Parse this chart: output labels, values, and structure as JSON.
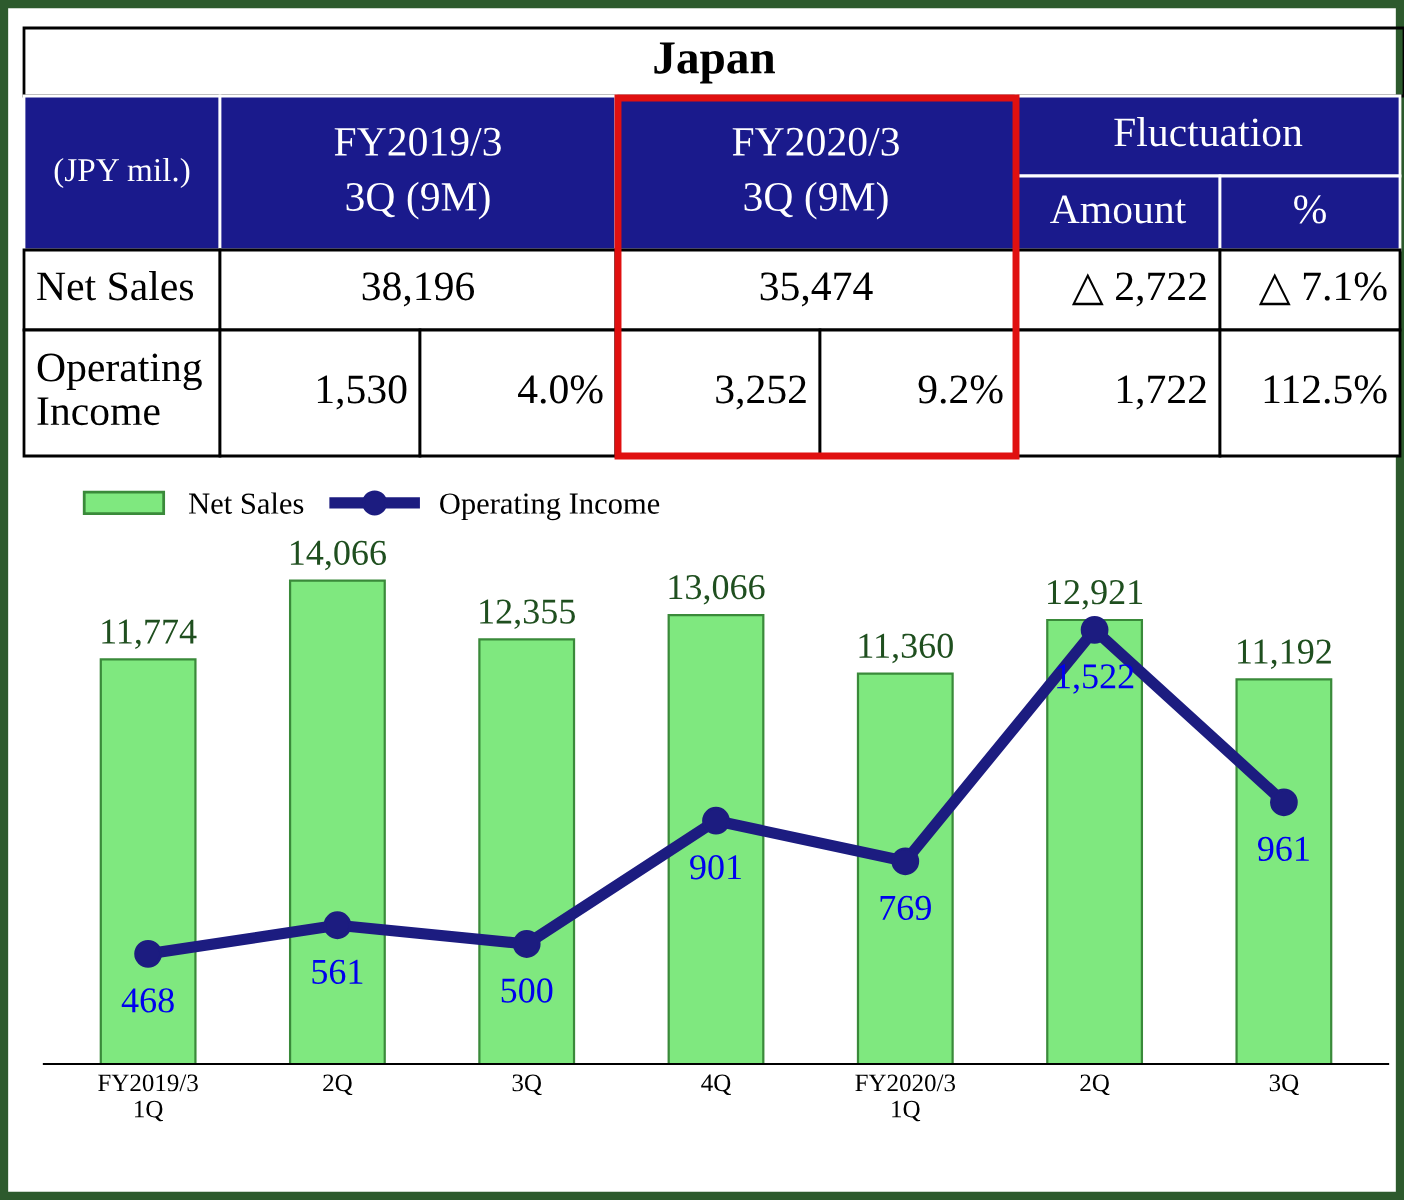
{
  "chart_data": [
    {
      "type": "other",
      "title": "Japan",
      "annotations": [
        "(JPY mil.)",
        "FY2019/3\n3Q (9M)",
        "FY2020/3\n3Q (9M)",
        "Fluctuation",
        "Amount",
        "%",
        "Net Sales",
        "38,196",
        "35,474",
        "△ 2,722",
        "△ 7.1%",
        "Operating\nIncome",
        "1,530",
        "4.0%",
        "3,252",
        "9.2%",
        "1,722",
        "112.5%"
      ]
    },
    {
      "type": "bar",
      "categories": [
        "FY2019/3\n1Q",
        "2Q",
        "3Q",
        "4Q",
        "FY2020/3\n1Q",
        "2Q",
        "3Q"
      ],
      "series": [
        {
          "name": "Net Sales",
          "type": "bar",
          "color": "#7fe87f",
          "values": [
            11774,
            14066,
            12355,
            13066,
            11360,
            12921,
            11192
          ],
          "value_labels": [
            "11,774",
            "14,066",
            "12,355",
            "13,066",
            "11,360",
            "12,921",
            "11,192"
          ]
        },
        {
          "name": "Operating Income",
          "type": "line",
          "axis": "y2",
          "color": "#1c1c80",
          "values": [
            468,
            561,
            500,
            901,
            769,
            1522,
            961
          ],
          "value_labels": [
            "468",
            "561",
            "500",
            "901",
            "769",
            "1,522",
            "961"
          ]
        }
      ],
      "tick_labels": "x",
      "legend": "top left",
      "marker": "circle",
      "line_style": "solid",
      "grid": false
    }
  ]
}
